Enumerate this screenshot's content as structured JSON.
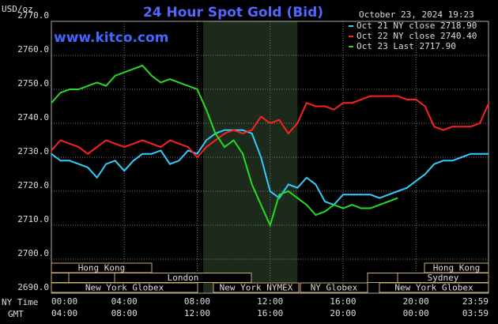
{
  "chart_data": {
    "type": "line",
    "title": "24 Hour Spot Gold (Bid)",
    "y_label": "USD/oz",
    "watermark": "www.kitco.com",
    "timestamp": "October 23, 2024 19:23",
    "x_axis_names": [
      "NY Time",
      "GMT"
    ],
    "x": [
      0,
      0.5,
      1,
      1.5,
      2,
      2.5,
      3,
      3.5,
      4,
      4.5,
      5,
      5.5,
      6,
      6.5,
      7,
      7.5,
      8,
      8.5,
      9,
      9.5,
      10,
      10.5,
      11,
      11.5,
      12,
      12.5,
      13,
      13.5,
      14,
      14.5,
      15,
      15.5,
      16,
      16.5,
      17,
      17.5,
      18,
      18.5,
      19,
      19.5,
      20,
      20.5,
      21,
      21.5,
      22,
      22.5,
      23,
      23.5,
      24
    ],
    "series": [
      {
        "name": "Oct 21 NY close 2718.90",
        "color": "#33ccff",
        "values": [
          2731,
          2729,
          2729,
          2728,
          2727,
          2724,
          2728,
          2729,
          2726,
          2729,
          2731,
          2731,
          2732,
          2728,
          2729,
          2732,
          2731,
          2735,
          2737,
          2738,
          2738,
          2738,
          2737,
          2730,
          2720,
          2718,
          2722,
          2721,
          2724,
          2722,
          2717,
          2716,
          2719,
          2719,
          2719,
          2719,
          2718,
          2719,
          2720,
          2721,
          2723,
          2725,
          2728,
          2729,
          2729,
          2730,
          2731,
          2731,
          2731
        ]
      },
      {
        "name": "Oct 22 NY close 2740.40",
        "color": "#ff2020",
        "values": [
          2732,
          2735,
          2734,
          2733,
          2731,
          2733,
          2735,
          2734,
          2733,
          2734,
          2735,
          2734,
          2733,
          2735,
          2734,
          2733,
          2730,
          2733,
          2735,
          2737,
          2738,
          2737,
          2738,
          2742,
          2740,
          2741,
          2737,
          2740,
          2746,
          2745,
          2745,
          2744,
          2746,
          2746,
          2747,
          2748,
          2748,
          2748,
          2748,
          2747,
          2747,
          2745,
          2739,
          2738,
          2739,
          2739,
          2739,
          2740,
          2746
        ]
      },
      {
        "name": "Oct 23 Last 2717.90",
        "color": "#22dd22",
        "values": [
          2746,
          2749,
          2750,
          2750,
          2751,
          2752,
          2751,
          2754,
          2755,
          2756,
          2757,
          2754,
          2752,
          2753,
          2752,
          2751,
          2750,
          2744,
          2737,
          2733,
          2735,
          2731,
          2722,
          2716,
          2710,
          2719,
          2720,
          2718,
          2716,
          2713,
          2714,
          2716,
          2715,
          2716,
          2715,
          2715,
          2716,
          2717,
          2718,
          null,
          null,
          null,
          null,
          null,
          null,
          null,
          null,
          null,
          null
        ]
      }
    ],
    "xlim": [
      0,
      23.98
    ],
    "xticks": [
      {
        "value": 0,
        "label": "00:00"
      },
      {
        "value": 4,
        "label": "04:00"
      },
      {
        "value": 8,
        "label": "08:00"
      },
      {
        "value": 12,
        "label": "12:00"
      },
      {
        "value": 16,
        "label": "16:00"
      },
      {
        "value": 20,
        "label": "20:00"
      },
      {
        "value": 23.98,
        "label": "23:59"
      }
    ],
    "gmt_labels": [
      "04:00",
      "08:00",
      "12:00",
      "16:00",
      "20:00",
      "00:00",
      "03:59"
    ],
    "ylim": [
      2690,
      2770
    ],
    "yticks": [
      {
        "value": 2690,
        "label": "2690.0"
      },
      {
        "value": 2700,
        "label": "2700.0"
      },
      {
        "value": 2710,
        "label": "2710.0"
      },
      {
        "value": 2720,
        "label": "2720.0"
      },
      {
        "value": 2730,
        "label": "2730.0"
      },
      {
        "value": 2740,
        "label": "2740.0"
      },
      {
        "value": 2750,
        "label": "2750.0"
      },
      {
        "value": 2760,
        "label": "2760.0"
      },
      {
        "value": 2770,
        "label": "2770.0"
      }
    ],
    "grid": true,
    "sessions": [
      "Hong Kong",
      "Hong Kong",
      "London",
      "Sydney",
      "New York Globex",
      "New York NYMEX",
      "NY Globex",
      "New York Globex"
    ]
  }
}
